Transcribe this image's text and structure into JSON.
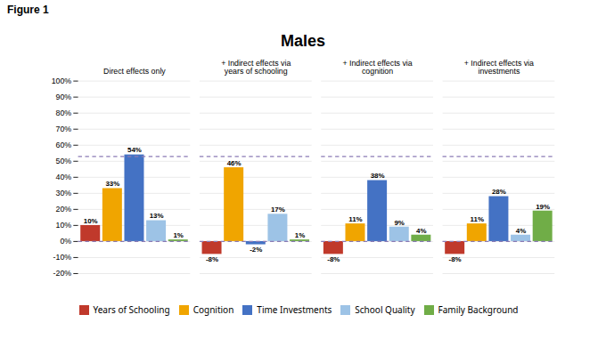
{
  "chart_data": {
    "type": "bar",
    "title": "Males",
    "annotations": [
      "Figure 1"
    ],
    "categories": [
      "Direct effects only",
      "+ Indirect effects via\nyears of schooling",
      "+ Indirect effects via\ncognition",
      "+ Indirect effects via\ninvestments"
    ],
    "series": [
      {
        "name": "Years of Schooling",
        "color": "#C0392B",
        "values": [
          10,
          -8,
          -8,
          -8
        ],
        "value_labels": [
          "10%",
          "-8%",
          "-8%",
          "-8%"
        ]
      },
      {
        "name": "Cognition",
        "color": "#F0A500",
        "values": [
          33,
          46,
          11,
          11
        ],
        "value_labels": [
          "33%",
          "46%",
          "11%",
          "11%"
        ]
      },
      {
        "name": "Time Investments",
        "color": "#4472C4",
        "values": [
          54,
          -2,
          38,
          28
        ],
        "value_labels": [
          "54%",
          "-2%",
          "38%",
          "28%"
        ]
      },
      {
        "name": "School Quality",
        "color": "#9DC3E6",
        "values": [
          13,
          17,
          9,
          4
        ],
        "value_labels": [
          "13%",
          "17%",
          "9%",
          "4%"
        ]
      },
      {
        "name": "Family Background",
        "color": "#70AD47",
        "values": [
          1,
          1,
          4,
          19
        ],
        "value_labels": [
          "1%",
          "1%",
          "4%",
          "19%"
        ]
      }
    ],
    "ylim": [
      -20,
      100
    ],
    "yticks": [
      {
        "value": -20,
        "label": "-20%"
      },
      {
        "value": -10,
        "label": "-10%"
      },
      {
        "value": 0,
        "label": "0%"
      },
      {
        "value": 10,
        "label": "10%"
      },
      {
        "value": 20,
        "label": "20%"
      },
      {
        "value": 30,
        "label": "30%"
      },
      {
        "value": 40,
        "label": "40%"
      },
      {
        "value": 50,
        "label": "50%"
      },
      {
        "value": 60,
        "label": "60%"
      },
      {
        "value": 70,
        "label": "70%"
      },
      {
        "value": 80,
        "label": "80%"
      },
      {
        "value": 90,
        "label": "90%"
      },
      {
        "value": 100,
        "label": "100%"
      }
    ],
    "grid": true,
    "legend": "bottom",
    "data_labels": true,
    "reference_lines": [
      {
        "value": 0,
        "color": "#8B7BB5",
        "line_style": "dashed"
      },
      {
        "value": 53,
        "color": "#8B7BB5",
        "line_style": "dashed"
      }
    ]
  }
}
